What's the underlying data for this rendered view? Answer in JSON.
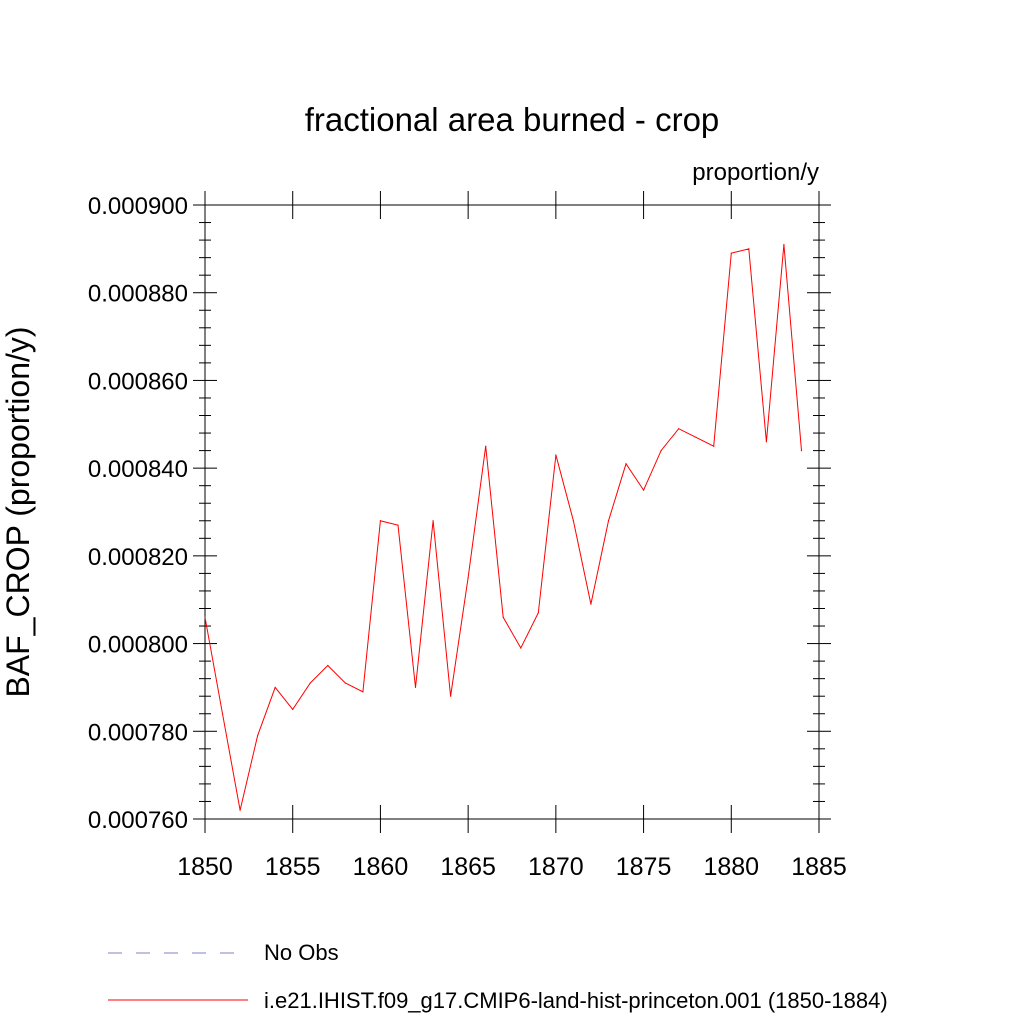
{
  "chart_data": {
    "type": "line",
    "title": "fractional area burned - crop",
    "units": "proportion/y",
    "ylabel": "BAF_CROP  (proportion/y)",
    "xlim": [
      1850,
      1885
    ],
    "ylim": [
      0.00076,
      0.0009
    ],
    "x_ticks": [
      "1850",
      "1855",
      "1860",
      "1865",
      "1870",
      "1875",
      "1880",
      "1885"
    ],
    "y_ticks": [
      "0.000760",
      "0.000780",
      "0.000800",
      "0.000820",
      "0.000840",
      "0.000860",
      "0.000880",
      "0.000900"
    ],
    "series": [
      {
        "name": "i.e21.IHIST.f09_g17.CMIP6-land-hist-princeton.001 (1850-1884)",
        "color": "#ff0000",
        "style": "solid",
        "x": [
          1850,
          1851,
          1852,
          1853,
          1854,
          1855,
          1856,
          1857,
          1858,
          1859,
          1860,
          1861,
          1862,
          1863,
          1864,
          1865,
          1866,
          1867,
          1868,
          1869,
          1870,
          1871,
          1872,
          1873,
          1874,
          1875,
          1876,
          1877,
          1878,
          1879,
          1880,
          1881,
          1882,
          1883,
          1884
        ],
        "y": [
          0.000806,
          0.000784,
          0.000762,
          0.000779,
          0.00079,
          0.000785,
          0.000791,
          0.000795,
          0.000791,
          0.000789,
          0.000828,
          0.000827,
          0.00079,
          0.000828,
          0.000788,
          0.000815,
          0.000845,
          0.000806,
          0.000799,
          0.000807,
          0.000843,
          0.000828,
          0.000809,
          0.000828,
          0.000841,
          0.000835,
          0.000844,
          0.000849,
          0.000847,
          0.000845,
          0.000889,
          0.00089,
          0.000846,
          0.000891,
          0.000844
        ]
      }
    ],
    "legend": [
      {
        "label": "No Obs",
        "color": "#8080c0",
        "style": "dashed"
      },
      {
        "label": "i.e21.IHIST.f09_g17.CMIP6-land-hist-princeton.001 (1850-1884)",
        "color": "#ff0000",
        "style": "solid"
      }
    ],
    "legend_placement": "bottom",
    "grid": false
  }
}
